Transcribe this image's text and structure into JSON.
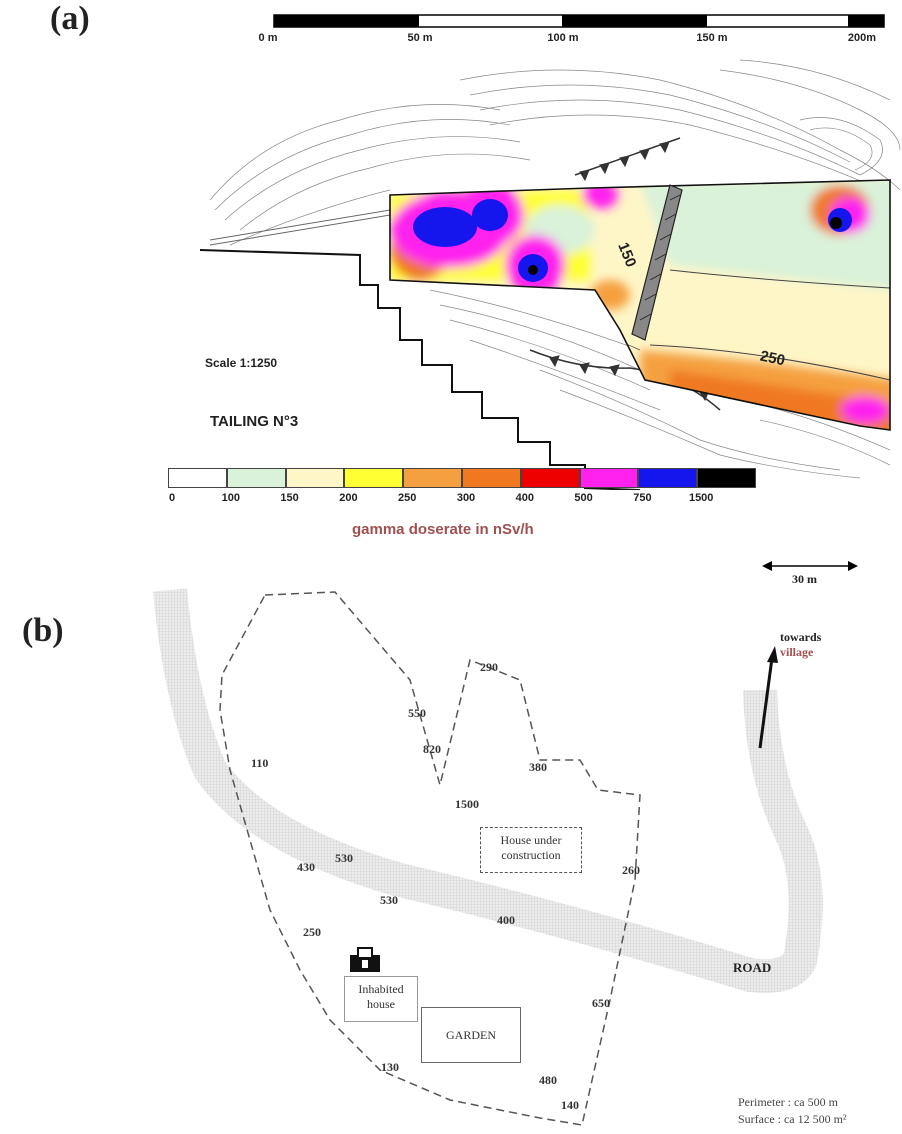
{
  "panel_a": {
    "label": "(a)",
    "scale_bar_ticks": [
      "0 m",
      "50 m",
      "100 m",
      "150 m",
      "200m"
    ],
    "scale_text": "Scale 1:1250",
    "tailing_label": "TAILING N°3",
    "contour_labels": [
      "150",
      "250"
    ],
    "legend": {
      "title": "gamma doserate in nSv/h",
      "ticks": [
        "0",
        "100",
        "150",
        "200",
        "250",
        "300",
        "400",
        "500",
        "750",
        "1500"
      ],
      "colors": [
        "#ffffff",
        "#d9f2d9",
        "#fff6c8",
        "#ffff33",
        "#f5a040",
        "#f07820",
        "#ee0000",
        "#ff22ee",
        "#1515ee",
        "#000000"
      ]
    }
  },
  "panel_b": {
    "label": "(b)",
    "scale_label": "30 m",
    "towards_village": [
      "towards",
      "village"
    ],
    "road_label": "ROAD",
    "house_under_construction": [
      "House under",
      "construction"
    ],
    "inhabited_house": [
      "Inhabited",
      "house"
    ],
    "garden": "GARDEN",
    "measurements": [
      "550",
      "820",
      "290",
      "380",
      "110",
      "1500",
      "430",
      "530",
      "530",
      "260",
      "400",
      "250",
      "650",
      "130",
      "480",
      "140"
    ],
    "perimeter": "Perimeter :  ca 500 m",
    "surface": "Surface : ca 12 500 m²"
  }
}
